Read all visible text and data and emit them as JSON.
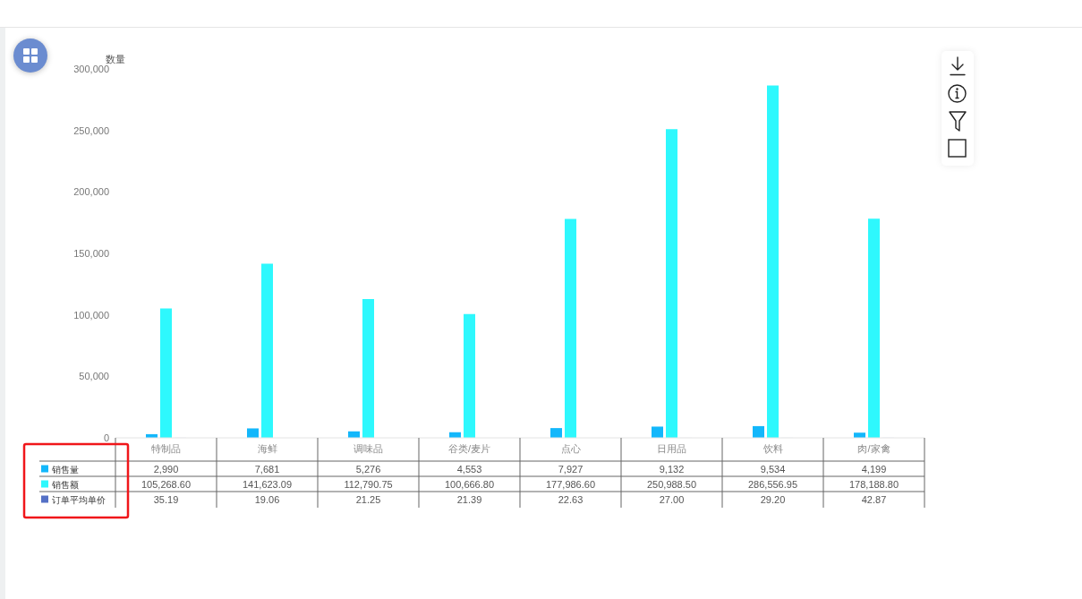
{
  "chart_data": {
    "type": "bar",
    "ylabel": "数量",
    "categories": [
      "特制品",
      "海鲜",
      "调味品",
      "谷类/麦片",
      "点心",
      "日用品",
      "饮料",
      "肉/家禽"
    ],
    "series": [
      {
        "name": "销售量",
        "color": "#13b7fb",
        "values": [
          2990,
          7681,
          5276,
          4553,
          7927,
          9132,
          9534,
          4199
        ],
        "value_labels": [
          "2,990",
          "7,681",
          "5,276",
          "4,553",
          "7,927",
          "9,132",
          "9,534",
          "4,199"
        ]
      },
      {
        "name": "销售额",
        "color": "#2ef8fd",
        "values": [
          105268.6,
          141623.09,
          112790.75,
          100666.8,
          177986.6,
          250988.5,
          286556.95,
          178188.8
        ],
        "value_labels": [
          "105,268.60",
          "141,623.09",
          "112,790.75",
          "100,666.80",
          "177,986.60",
          "250,988.50",
          "286,556.95",
          "178,188.80"
        ]
      },
      {
        "name": "订单平均单价",
        "color": "#5470c6",
        "values": [
          35.19,
          19.06,
          21.25,
          21.39,
          22.63,
          27,
          29.2,
          42.87
        ],
        "value_labels": [
          "35.19",
          "19.06",
          "21.25",
          "21.39",
          "22.63",
          "27.00",
          "29.20",
          "42.87"
        ]
      }
    ],
    "ylim": [
      0,
      300000
    ],
    "yticks": [
      0,
      {
        "value": 50000,
        "label": "50,000"
      },
      {
        "value": 100000,
        "label": "100,000"
      },
      {
        "value": 150000,
        "label": "150,000"
      },
      {
        "value": 200000,
        "label": "200,000"
      },
      {
        "value": 250000,
        "label": "250,000"
      },
      {
        "value": 300000,
        "label": "300,000"
      }
    ],
    "legend": "bottom left"
  }
}
